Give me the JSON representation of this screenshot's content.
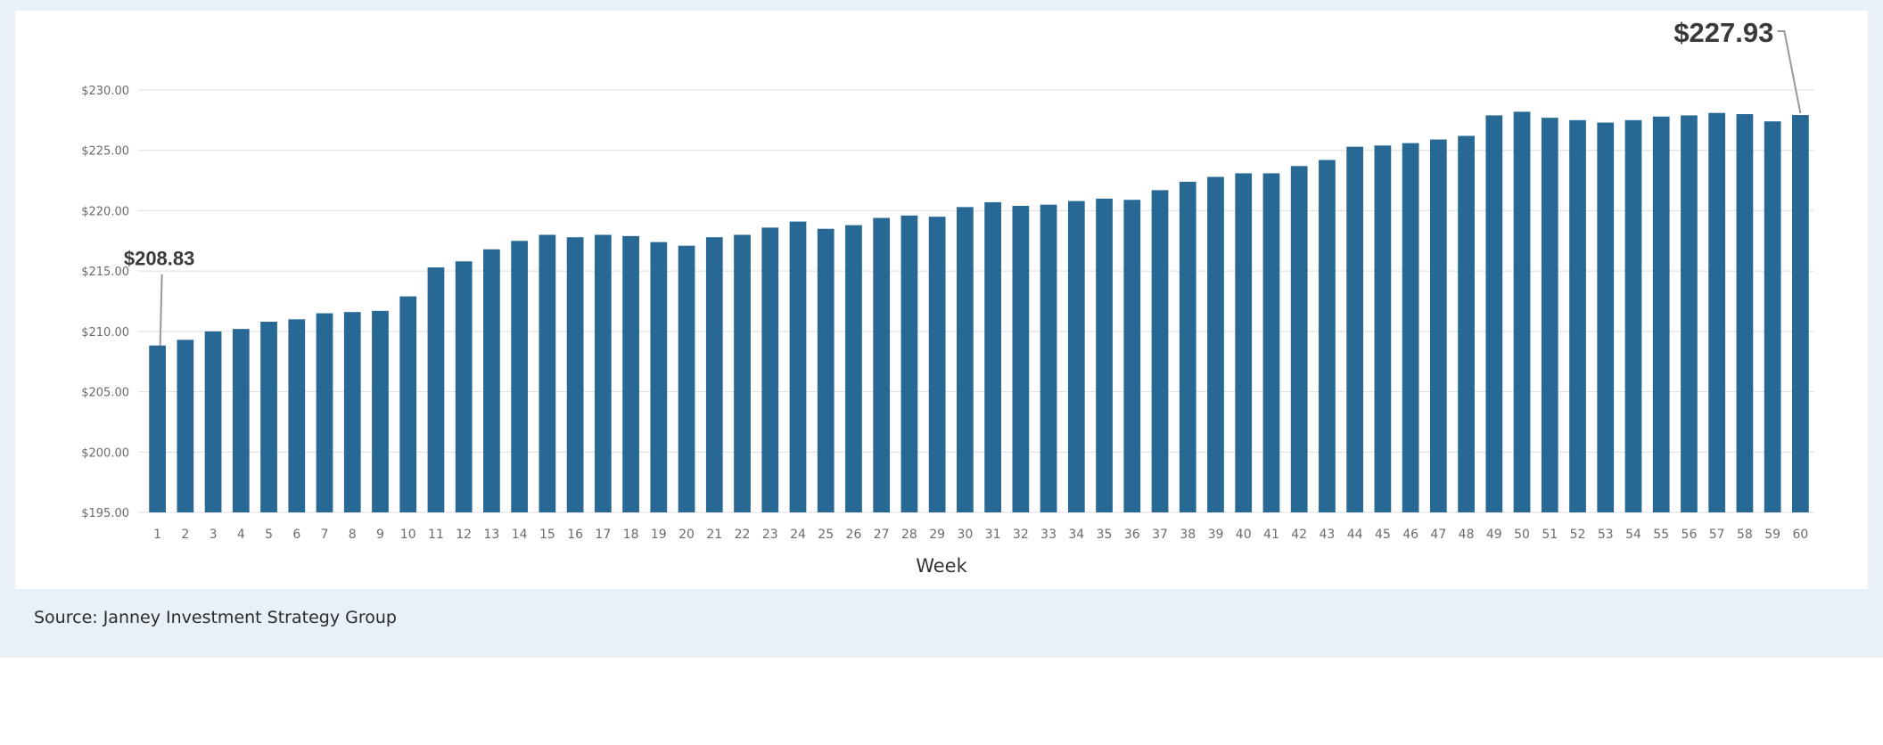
{
  "source_text": "Source: Janney Investment Strategy Group",
  "colors": {
    "bar": "#276895",
    "grid": "#dedede",
    "panel": "#e9f1f8",
    "leader": "#999999"
  },
  "chart_data": {
    "type": "bar",
    "title": "",
    "xlabel": "Week",
    "ylabel": "",
    "ylim": [
      195,
      230
    ],
    "y_ticks": [
      195,
      200,
      205,
      210,
      215,
      220,
      225,
      230
    ],
    "y_tick_labels": [
      "$195.00",
      "$200.00",
      "$205.00",
      "$210.00",
      "$215.00",
      "$220.00",
      "$225.00",
      "$230.00"
    ],
    "grid": true,
    "categories": [
      "1",
      "2",
      "3",
      "4",
      "5",
      "6",
      "7",
      "8",
      "9",
      "10",
      "11",
      "12",
      "13",
      "14",
      "15",
      "16",
      "17",
      "18",
      "19",
      "20",
      "21",
      "22",
      "23",
      "24",
      "25",
      "26",
      "27",
      "28",
      "29",
      "30",
      "31",
      "32",
      "33",
      "34",
      "35",
      "36",
      "37",
      "38",
      "39",
      "40",
      "41",
      "42",
      "43",
      "44",
      "45",
      "46",
      "47",
      "48",
      "49",
      "50",
      "51",
      "52",
      "53",
      "54",
      "55",
      "56",
      "57",
      "58",
      "59",
      "60"
    ],
    "values": [
      208.83,
      209.3,
      210.0,
      210.2,
      210.8,
      211.0,
      211.5,
      211.6,
      211.7,
      212.9,
      215.3,
      215.8,
      216.8,
      217.5,
      218.0,
      217.8,
      218.0,
      217.9,
      217.4,
      217.1,
      217.8,
      218.0,
      218.6,
      219.1,
      218.5,
      218.8,
      219.4,
      219.6,
      219.5,
      220.3,
      220.7,
      220.4,
      220.5,
      220.8,
      221.0,
      220.9,
      221.7,
      222.4,
      222.8,
      223.1,
      223.1,
      223.7,
      224.2,
      225.3,
      225.4,
      225.6,
      225.9,
      226.2,
      227.9,
      228.2,
      227.7,
      227.5,
      227.3,
      227.5,
      227.8,
      227.9,
      228.1,
      228.0,
      227.4,
      227.93
    ],
    "annotations": [
      {
        "index": 0,
        "text": "$208.83"
      },
      {
        "index": 59,
        "text": "$227.93"
      }
    ]
  }
}
